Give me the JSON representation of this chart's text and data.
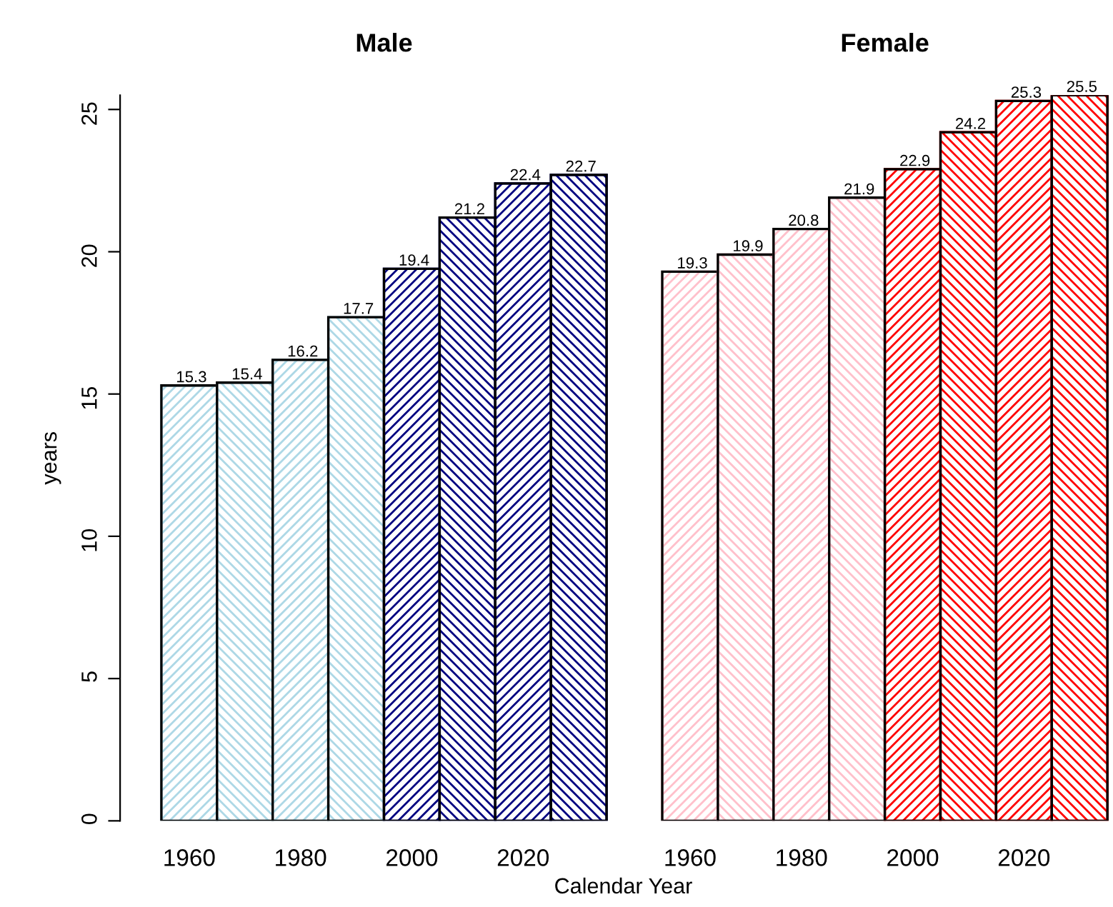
{
  "chart_data": [
    {
      "type": "bar",
      "title": "Male",
      "ylabel": "years",
      "xlabel": "Calendar Year",
      "categories": [
        "1960",
        null,
        "1980",
        null,
        "2000",
        null,
        "2020",
        null
      ],
      "values": [
        15.3,
        15.4,
        16.2,
        17.7,
        19.4,
        21.2,
        22.4,
        22.7
      ],
      "colors": [
        "#add8e6",
        "#add8e6",
        "#add8e6",
        "#add8e6",
        "#000080",
        "#000080",
        "#000080",
        "#000080"
      ],
      "ylim": [
        0,
        25.5
      ],
      "yticks": [
        0,
        5,
        10,
        15,
        20,
        25
      ],
      "data_labels": true,
      "grid": false,
      "legend": false
    },
    {
      "type": "bar",
      "title": "Female",
      "categories": [
        "1960",
        null,
        "1980",
        null,
        "2000",
        null,
        "2020",
        null
      ],
      "values": [
        19.3,
        19.9,
        20.8,
        21.9,
        22.9,
        24.2,
        25.3,
        25.5
      ],
      "colors": [
        "#ffc0cb",
        "#ffc0cb",
        "#ffc0cb",
        "#ffc0cb",
        "#ff0000",
        "#ff0000",
        "#ff0000",
        "#ff0000"
      ],
      "ylim": [
        0,
        25.5
      ],
      "yticks": [
        0,
        5,
        10,
        15,
        20,
        25
      ],
      "tick_labels": "x",
      "data_labels": true,
      "grid": false,
      "legend": false
    }
  ]
}
